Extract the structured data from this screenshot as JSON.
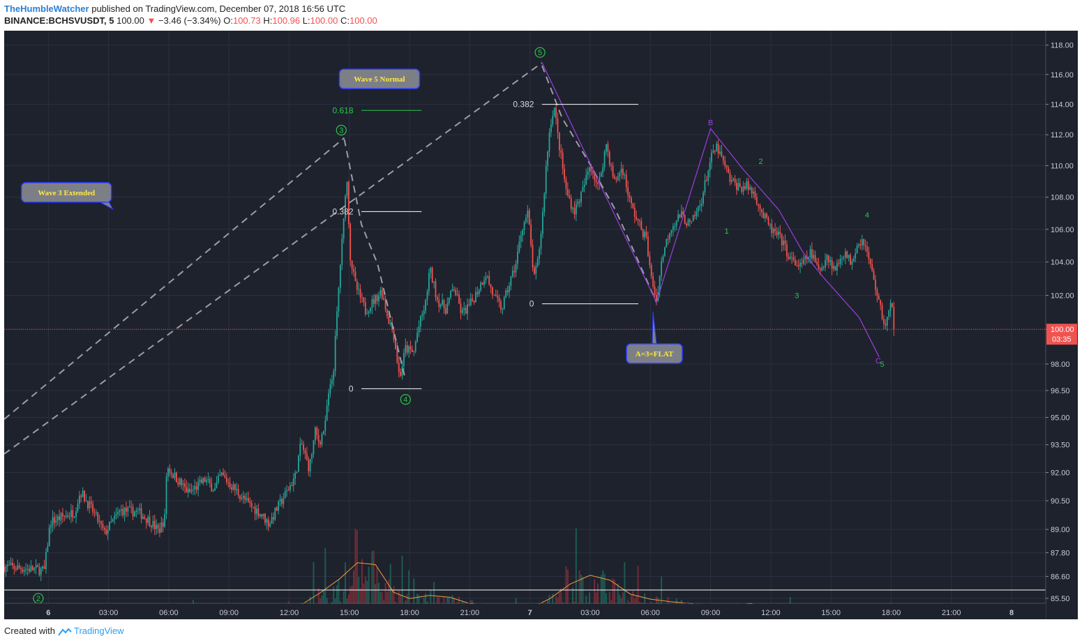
{
  "header": {
    "author": "TheHumbleWatcher",
    "published_text": "published on TradingView.com, December 07, 2018 16:56 UTC",
    "symbol": "BINANCE:BCHSVUSDT, 5",
    "last": "100.00",
    "change": "−3.46 (−3.34%)",
    "o_label": "O:",
    "o_val": "100.73",
    "h_label": "H:",
    "h_val": "100.96",
    "l_label": "L:",
    "l_val": "100.00",
    "c_label": "C:",
    "c_val": "100.00"
  },
  "footer": {
    "created_with": "Created with",
    "brand": "TradingView"
  },
  "colors": {
    "background": "#1e222d",
    "grid": "#2b3040",
    "up": "#26a69a",
    "down": "#ef5350",
    "price_line": "#ef5350",
    "annotation_green": "#2ec44a",
    "annotation_purple": "#9c3fe0",
    "callout_fill": "#7d7f87",
    "callout_border": "#2c3bff",
    "callout_text": "#ffeb3b"
  },
  "chart_data": {
    "type": "candlestick",
    "scale": "log",
    "price_axis": {
      "ticks": [
        "118.00",
        "116.00",
        "114.00",
        "112.00",
        "110.00",
        "108.00",
        "106.00",
        "104.00",
        "102.00",
        "100.00",
        "98.00",
        "96.50",
        "95.00",
        "93.50",
        "92.00",
        "90.50",
        "89.00",
        "87.80",
        "86.60",
        "85.50"
      ],
      "tick_values": [
        118,
        116,
        114,
        112,
        110,
        108,
        106,
        104,
        102,
        100,
        98,
        96.5,
        95,
        93.5,
        92,
        90.5,
        89,
        87.8,
        86.6,
        85.5
      ],
      "range": [
        84.6,
        118.9
      ]
    },
    "time_axis": {
      "ticks": [
        "6",
        "03:00",
        "06:00",
        "09:00",
        "12:00",
        "15:00",
        "18:00",
        "21:00",
        "7",
        "03:00",
        "06:00",
        "09:00",
        "12:00",
        "15:00",
        "18:00",
        "21:00",
        "8"
      ],
      "tick_hours": [
        0,
        3,
        6,
        9,
        12,
        15,
        18,
        21,
        24,
        27,
        30,
        33,
        36,
        39,
        42,
        45,
        48
      ],
      "range_hours": [
        -2.2,
        49.7
      ]
    },
    "last_price": {
      "label": "100.00",
      "value": 100.0,
      "countdown": "03:35"
    },
    "price_path": [
      [
        -2.2,
        87.1
      ],
      [
        -0.2,
        86.9
      ],
      [
        0.1,
        89.4
      ],
      [
        1.3,
        89.9
      ],
      [
        1.6,
        91.0
      ],
      [
        2.3,
        89.8
      ],
      [
        2.8,
        88.8
      ],
      [
        3.6,
        90.0
      ],
      [
        4.5,
        89.9
      ],
      [
        5.1,
        89.4
      ],
      [
        5.5,
        88.9
      ],
      [
        5.8,
        89.6
      ],
      [
        5.9,
        92.3
      ],
      [
        7.0,
        90.9
      ],
      [
        7.8,
        91.6
      ],
      [
        8.3,
        91.1
      ],
      [
        8.6,
        91.9
      ],
      [
        9.3,
        91.1
      ],
      [
        10.0,
        90.3
      ],
      [
        10.5,
        89.9
      ],
      [
        11.0,
        89.3
      ],
      [
        11.4,
        90.1
      ],
      [
        11.9,
        91.0
      ],
      [
        12.3,
        91.8
      ],
      [
        12.6,
        93.6
      ],
      [
        13.0,
        92.2
      ],
      [
        13.3,
        94.2
      ],
      [
        13.5,
        93.6
      ],
      [
        13.8,
        94.6
      ],
      [
        13.9,
        95.8
      ],
      [
        14.2,
        97.5
      ],
      [
        14.35,
        100.3
      ],
      [
        14.55,
        103.9
      ],
      [
        14.75,
        107.0
      ],
      [
        14.85,
        109.8
      ],
      [
        15.05,
        104.3
      ],
      [
        15.3,
        102.6
      ],
      [
        15.8,
        101.1
      ],
      [
        16.3,
        101.8
      ],
      [
        16.6,
        102.3
      ],
      [
        16.9,
        100.8
      ],
      [
        17.2,
        99.8
      ],
      [
        17.5,
        97.2
      ],
      [
        17.8,
        98.9
      ],
      [
        18.2,
        98.6
      ],
      [
        18.4,
        99.9
      ],
      [
        18.8,
        101.5
      ],
      [
        19.0,
        103.6
      ],
      [
        19.4,
        101.7
      ],
      [
        19.8,
        101.2
      ],
      [
        20.2,
        102.5
      ],
      [
        20.6,
        100.9
      ],
      [
        21.0,
        101.4
      ],
      [
        21.4,
        102.3
      ],
      [
        21.8,
        103.3
      ],
      [
        22.2,
        101.9
      ],
      [
        22.6,
        101.2
      ],
      [
        22.9,
        102.4
      ],
      [
        23.3,
        103.9
      ],
      [
        23.6,
        106.1
      ],
      [
        23.9,
        107.0
      ],
      [
        24.2,
        102.9
      ],
      [
        24.4,
        104.1
      ],
      [
        24.6,
        106.4
      ],
      [
        24.8,
        109.9
      ],
      [
        25.0,
        112.6
      ],
      [
        25.2,
        113.9
      ],
      [
        25.4,
        111.8
      ],
      [
        25.8,
        108.4
      ],
      [
        26.2,
        107.1
      ],
      [
        26.6,
        108.3
      ],
      [
        27.0,
        110.1
      ],
      [
        27.4,
        108.6
      ],
      [
        27.8,
        111.4
      ],
      [
        28.2,
        108.9
      ],
      [
        28.6,
        109.9
      ],
      [
        29.0,
        107.6
      ],
      [
        29.4,
        106.4
      ],
      [
        29.8,
        105.4
      ],
      [
        30.0,
        103.3
      ],
      [
        30.3,
        101.7
      ],
      [
        30.6,
        104.4
      ],
      [
        31.0,
        106.1
      ],
      [
        31.5,
        106.9
      ],
      [
        32.0,
        106.2
      ],
      [
        32.5,
        107.6
      ],
      [
        33.0,
        110.4
      ],
      [
        33.3,
        111.2
      ],
      [
        33.6,
        110.3
      ],
      [
        34.0,
        109.0
      ],
      [
        34.5,
        108.6
      ],
      [
        34.8,
        108.7
      ],
      [
        35.2,
        108.2
      ],
      [
        35.6,
        106.9
      ],
      [
        36.0,
        106.0
      ],
      [
        36.5,
        105.4
      ],
      [
        37.0,
        104.1
      ],
      [
        37.5,
        103.7
      ],
      [
        38.0,
        104.6
      ],
      [
        38.4,
        103.4
      ],
      [
        38.8,
        104.4
      ],
      [
        39.2,
        103.5
      ],
      [
        39.6,
        104.6
      ],
      [
        40.0,
        104.0
      ],
      [
        40.3,
        105.1
      ],
      [
        40.6,
        105.4
      ],
      [
        40.9,
        104.1
      ],
      [
        41.2,
        102.6
      ],
      [
        41.5,
        101.0
      ],
      [
        41.7,
        100.2
      ],
      [
        42.0,
        101.5
      ],
      [
        42.2,
        100.0
      ]
    ],
    "volume_path": [
      [
        -2.2,
        0.4
      ],
      [
        0,
        0.6
      ],
      [
        2,
        0.8
      ],
      [
        4,
        0.6
      ],
      [
        5.5,
        0.7
      ],
      [
        6,
        1.7
      ],
      [
        8,
        1.3
      ],
      [
        10,
        0.9
      ],
      [
        11.5,
        1.2
      ],
      [
        12.5,
        2.0
      ],
      [
        13.5,
        4.0
      ],
      [
        14.5,
        6.3
      ],
      [
        15.4,
        8.9
      ],
      [
        16.3,
        8.6
      ],
      [
        17.2,
        4.2
      ],
      [
        18,
        3.2
      ],
      [
        19,
        3.7
      ],
      [
        20,
        3.4
      ],
      [
        21,
        2.4
      ],
      [
        22,
        1.9
      ],
      [
        23,
        1.4
      ],
      [
        24,
        1.6
      ],
      [
        25,
        3.2
      ],
      [
        26,
        5.5
      ],
      [
        27,
        6.9
      ],
      [
        28,
        6.1
      ],
      [
        29,
        3.9
      ],
      [
        30,
        3.1
      ],
      [
        31,
        2.7
      ],
      [
        32,
        2.4
      ],
      [
        33,
        1.6
      ],
      [
        34,
        1.8
      ],
      [
        35,
        2.4
      ],
      [
        36,
        1.3
      ],
      [
        37,
        1.4
      ],
      [
        38,
        1.1
      ],
      [
        39,
        1.0
      ],
      [
        40,
        0.9
      ],
      [
        41,
        1.5
      ],
      [
        42,
        2.1
      ]
    ],
    "patterns": [
      {
        "kind": "dashed",
        "points": [
          [
            -2.2,
            93.0
          ],
          [
            24.6,
            116.8
          ]
        ]
      },
      {
        "kind": "dashed",
        "points": [
          [
            -2.2,
            94.9
          ],
          [
            14.75,
            111.8
          ]
        ]
      },
      {
        "kind": "dashed",
        "points": [
          [
            14.75,
            111.7
          ],
          [
            15.6,
            106.3
          ],
          [
            16.4,
            103.9
          ],
          [
            17.8,
            97.1
          ]
        ]
      },
      {
        "kind": "dashed",
        "points": [
          [
            24.6,
            116.6
          ],
          [
            25.6,
            113.1
          ],
          [
            26.9,
            110.3
          ],
          [
            28.3,
            107.1
          ],
          [
            30.3,
            101.6
          ]
        ]
      },
      {
        "kind": "purple",
        "points": [
          [
            30.3,
            101.6
          ],
          [
            33.0,
            112.4
          ],
          [
            34.6,
            109.8
          ],
          [
            36.4,
            107.2
          ],
          [
            37.6,
            104.6
          ],
          [
            38.6,
            103.1
          ],
          [
            40.4,
            100.7
          ],
          [
            41.4,
            98.4
          ]
        ]
      },
      {
        "kind": "purple",
        "points": [
          [
            24.6,
            116.8
          ],
          [
            30.3,
            101.6
          ]
        ]
      }
    ],
    "fib_levels": [
      {
        "label": "0.618",
        "value": 113.6,
        "t_start": 15.6,
        "t_end": 18.6,
        "style": "green",
        "label_t": 15.2
      },
      {
        "label": "0.382",
        "value": 107.1,
        "t_start": 15.6,
        "t_end": 18.6,
        "style": "white",
        "label_t": 15.2
      },
      {
        "label": "0",
        "value": 96.6,
        "t_start": 15.6,
        "t_end": 18.6,
        "style": "white",
        "label_t": 15.2
      },
      {
        "label": "0.382",
        "value": 114.0,
        "t_start": 24.6,
        "t_end": 29.4,
        "style": "white",
        "label_t": 24.2
      },
      {
        "label": "0",
        "value": 101.5,
        "t_start": 24.6,
        "t_end": 29.4,
        "style": "white",
        "label_t": 24.2
      }
    ],
    "wave_labels": [
      {
        "text": "2",
        "t": -0.5,
        "p": 85.5,
        "style": "circle"
      },
      {
        "text": "3",
        "t": 14.6,
        "p": 112.3,
        "style": "circle"
      },
      {
        "text": "4",
        "t": 17.8,
        "p": 96.0,
        "style": "circle"
      },
      {
        "text": "5",
        "t": 24.5,
        "p": 117.5,
        "style": "circle"
      },
      {
        "text": "B",
        "t": 33.0,
        "p": 112.8,
        "style": "purple"
      },
      {
        "text": "C",
        "t": 41.35,
        "p": 98.2,
        "style": "purple"
      },
      {
        "text": "1",
        "t": 33.8,
        "p": 105.9,
        "style": "green"
      },
      {
        "text": "2",
        "t": 35.5,
        "p": 110.3,
        "style": "green"
      },
      {
        "text": "3",
        "t": 37.3,
        "p": 102.0,
        "style": "green"
      },
      {
        "text": "4",
        "t": 40.8,
        "p": 106.9,
        "style": "green"
      },
      {
        "text": "5",
        "t": 41.55,
        "p": 98.0,
        "style": "green"
      }
    ],
    "callouts": [
      {
        "text": "Wave 3 Extended",
        "t": 0.9,
        "p": 108.3,
        "tail": "down-right"
      },
      {
        "text": "Wave 5 Normal",
        "t": 16.5,
        "p": 115.7,
        "tail": "none"
      },
      {
        "text": "A=3=FLAT",
        "t": 30.2,
        "p": 98.6,
        "tail": "up"
      }
    ]
  }
}
